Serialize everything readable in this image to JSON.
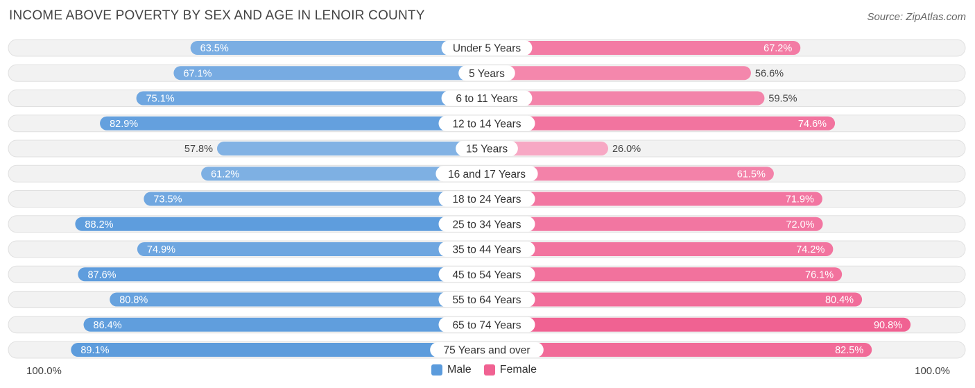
{
  "header": {
    "title": "INCOME ABOVE POVERTY BY SEX AND AGE IN LENOIR COUNTY",
    "source": "Source: ZipAtlas.com"
  },
  "axis": {
    "left_label": "100.0%",
    "right_label": "100.0%"
  },
  "legend": {
    "male_label": "Male",
    "female_label": "Female"
  },
  "colors": {
    "male_strong": "#5b9bdc",
    "male_light": "#a8c8ec",
    "female_strong": "#f06292",
    "female_light": "#f7a8c4",
    "row_bg": "#f2f2f2",
    "row_border": "#e0e0e0"
  },
  "chart_data": {
    "type": "bar",
    "orientation": "horizontal-diverging",
    "title": "INCOME ABOVE POVERTY BY SEX AND AGE IN LENOIR COUNTY",
    "categories": [
      "Under 5 Years",
      "5 Years",
      "6 to 11 Years",
      "12 to 14 Years",
      "15 Years",
      "16 and 17 Years",
      "18 to 24 Years",
      "25 to 34 Years",
      "35 to 44 Years",
      "45 to 54 Years",
      "55 to 64 Years",
      "65 to 74 Years",
      "75 Years and over"
    ],
    "series": [
      {
        "name": "Male",
        "values": [
          63.5,
          67.1,
          75.1,
          82.9,
          57.8,
          61.2,
          73.5,
          88.2,
          74.9,
          87.6,
          80.8,
          86.4,
          89.1
        ],
        "labels": [
          "63.5%",
          "67.1%",
          "75.1%",
          "82.9%",
          "57.8%",
          "61.2%",
          "73.5%",
          "88.2%",
          "74.9%",
          "87.6%",
          "80.8%",
          "86.4%",
          "89.1%"
        ]
      },
      {
        "name": "Female",
        "values": [
          67.2,
          56.6,
          59.5,
          74.6,
          26.0,
          61.5,
          71.9,
          72.0,
          74.2,
          76.1,
          80.4,
          90.8,
          82.5
        ],
        "labels": [
          "67.2%",
          "56.6%",
          "59.5%",
          "74.6%",
          "26.0%",
          "61.5%",
          "71.9%",
          "72.0%",
          "74.2%",
          "76.1%",
          "80.4%",
          "90.8%",
          "82.5%"
        ]
      }
    ],
    "xlim": [
      0,
      100
    ],
    "legend_position": "bottom-center"
  }
}
